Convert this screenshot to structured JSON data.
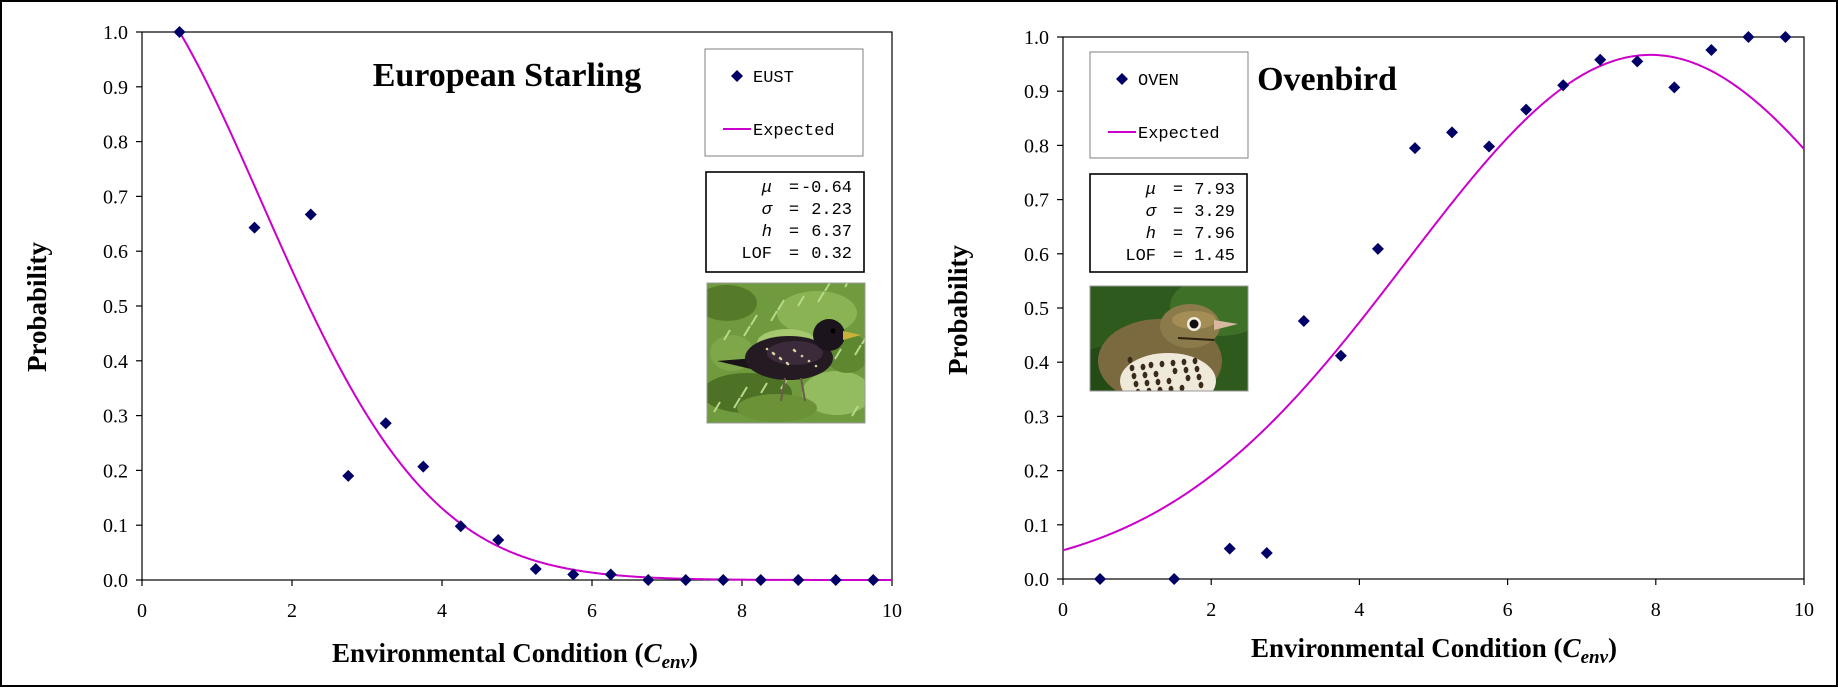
{
  "chart_data": [
    {
      "type": "scatter",
      "title": "European Starling",
      "xlabel_main": "Environmental Condition (",
      "xlabel_var": "C",
      "xlabel_sub": "env",
      "xlabel_end": ")",
      "ylabel": "Probability",
      "xlim": [
        0,
        10
      ],
      "ylim": [
        0,
        1
      ],
      "xticks": [
        0,
        2,
        4,
        6,
        8,
        10
      ],
      "yticks": [
        "0.0",
        "0.1",
        "0.2",
        "0.3",
        "0.4",
        "0.5",
        "0.6",
        "0.7",
        "0.8",
        "0.9",
        "1.0"
      ],
      "marker_color": "#000066",
      "curve_color": "#cc00cc",
      "legend": {
        "series_label": "EUST",
        "curve_label": "Expected"
      },
      "stats": [
        {
          "sym": "μ",
          "italic": true,
          "val": "-0.64"
        },
        {
          "sym": "σ",
          "italic": true,
          "val": "2.23"
        },
        {
          "sym": "h",
          "italic": true,
          "val": "6.37"
        },
        {
          "sym": "LOF",
          "italic": false,
          "val": "0.32"
        }
      ],
      "photo_subject": "european-starling",
      "series": [
        {
          "name": "EUST",
          "x": [
            0.5,
            1.5,
            2.25,
            2.75,
            3.25,
            3.75,
            4.25,
            4.75,
            5.25,
            5.75,
            6.25,
            6.75,
            7.25,
            7.75,
            8.25,
            8.75,
            9.25,
            9.75
          ],
          "y": [
            1.0,
            0.643,
            0.667,
            0.19,
            0.286,
            0.207,
            0.098,
            0.073,
            0.02,
            0.01,
            0.01,
            0.0,
            0.0,
            0.0,
            0.0,
            0.0,
            0.0,
            0.0
          ]
        }
      ],
      "expected_curve": {
        "mu": -0.64,
        "sigma": 2.23,
        "peak": 1.0,
        "norm_x": 0.5,
        "norm_y": 1.0
      }
    },
    {
      "type": "scatter",
      "title": "Ovenbird",
      "xlabel_main": "Environmental Condition (",
      "xlabel_var": "C",
      "xlabel_sub": "env",
      "xlabel_end": ")",
      "ylabel": "Probability",
      "xlim": [
        0,
        10
      ],
      "ylim": [
        0,
        1
      ],
      "xticks": [
        0,
        2,
        4,
        6,
        8,
        10
      ],
      "yticks": [
        "0.0",
        "0.1",
        "0.2",
        "0.3",
        "0.4",
        "0.5",
        "0.6",
        "0.7",
        "0.8",
        "0.9",
        "1.0"
      ],
      "marker_color": "#000066",
      "curve_color": "#cc00cc",
      "legend": {
        "series_label": "OVEN",
        "curve_label": "Expected"
      },
      "stats": [
        {
          "sym": "μ",
          "italic": true,
          "val": "7.93"
        },
        {
          "sym": "σ",
          "italic": true,
          "val": "3.29"
        },
        {
          "sym": "h",
          "italic": true,
          "val": "7.96"
        },
        {
          "sym": "LOF",
          "italic": false,
          "val": "1.45"
        }
      ],
      "photo_subject": "ovenbird",
      "series": [
        {
          "name": "OVEN",
          "x": [
            0.5,
            1.5,
            2.25,
            2.75,
            3.25,
            3.75,
            4.25,
            4.75,
            5.25,
            5.75,
            6.25,
            6.75,
            7.25,
            7.75,
            8.25,
            8.75,
            9.25,
            9.75
          ],
          "y": [
            0.0,
            0.0,
            0.056,
            0.048,
            0.476,
            0.412,
            0.609,
            0.795,
            0.824,
            0.798,
            0.866,
            0.911,
            0.958,
            0.955,
            0.907,
            0.976,
            1.0,
            1.0
          ]
        }
      ],
      "expected_curve": {
        "mu": 7.93,
        "sigma": 3.29,
        "peak": 0.967,
        "norm_x": null,
        "norm_y": null
      }
    }
  ]
}
